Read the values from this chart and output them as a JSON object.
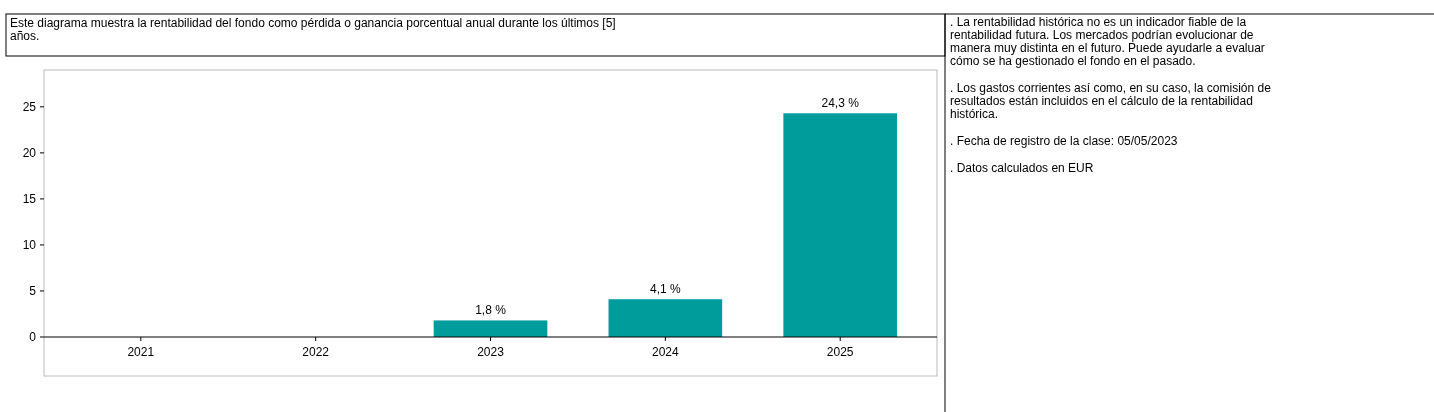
{
  "chart_data": {
    "type": "bar",
    "title": "Este diagrama muestra la rentabilidad del fondo como pérdida o ganancia porcentual anual durante los últimos [5] años.",
    "categories": [
      "2021",
      "2022",
      "2023",
      "2024",
      "2025"
    ],
    "values": [
      null,
      null,
      1.8,
      4.1,
      24.3
    ],
    "value_labels": [
      null,
      null,
      "1,8 %",
      "4,1 %",
      "24,3 %"
    ],
    "color": "#009b9b",
    "ylim": [
      0,
      29
    ],
    "yticks": [
      0,
      5,
      10,
      15,
      20,
      25
    ],
    "grid": false,
    "annotations": [
      ". La rentabilidad histórica no es un indicador fiable de la rentabilidad futura. Los mercados podrían evolucionar de manera muy distinta en el futuro. Puede ayudarle a evaluar cómo se ha gestionado el fondo en el pasado.",
      ". Los gastos corrientes así como, en su caso, la comisión de resultados están incluidos en el cálculo de la rentabilidad histórica.",
      ". Fecha de registro de la clase: 05/05/2023",
      ". Datos calculados en EUR"
    ]
  }
}
